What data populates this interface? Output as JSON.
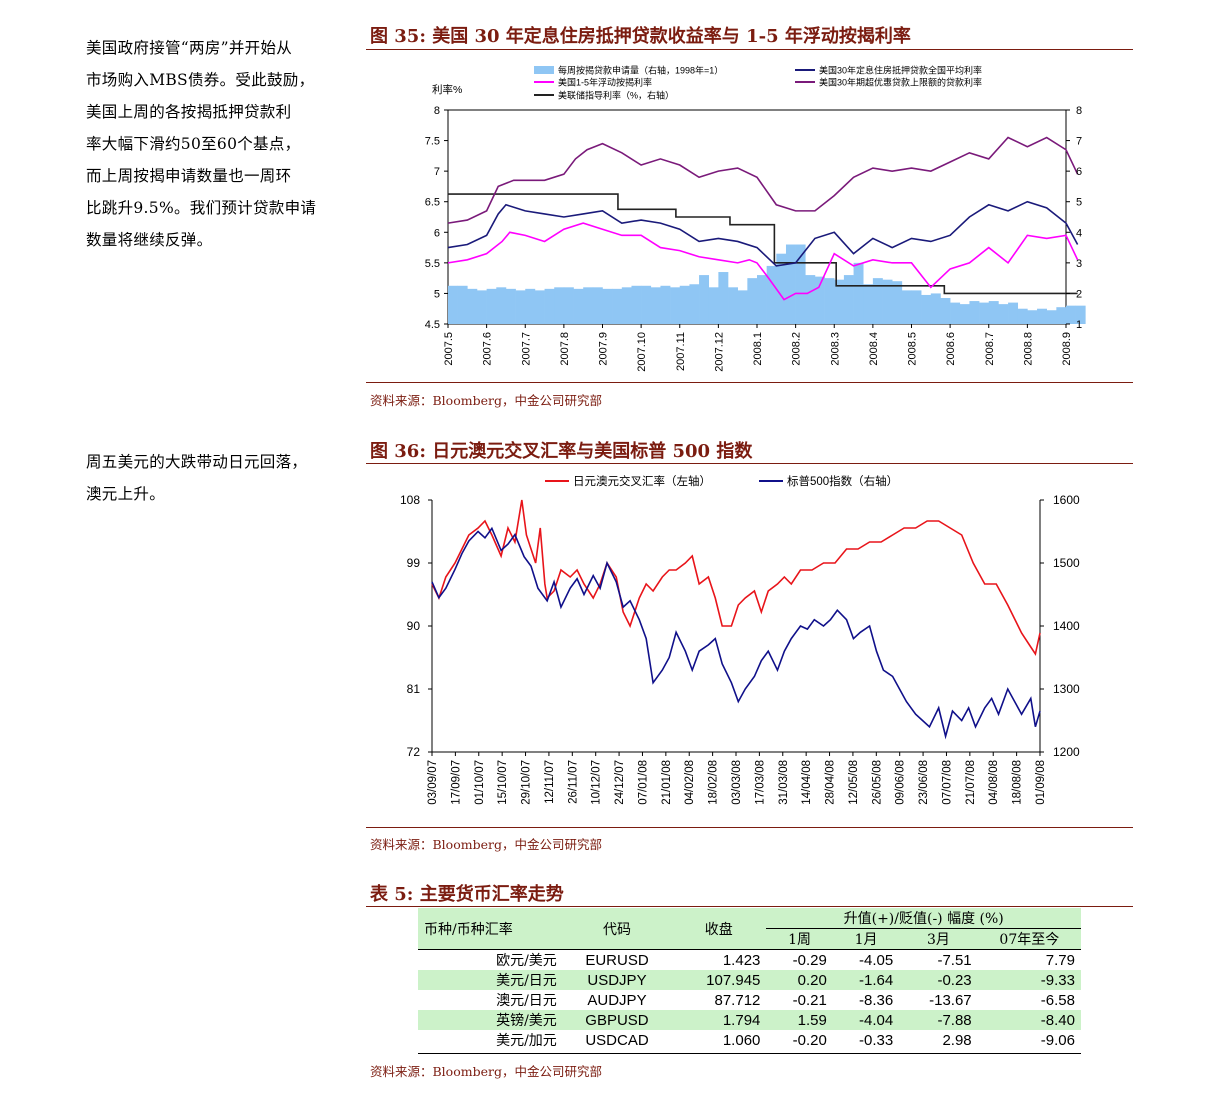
{
  "side1": [
    "美国政府接管“两房”并开始从",
    "市场购入MBS债券。受此鼓励，",
    "美国上周的各按揭抵押贷款利",
    "率大幅下滑约50至60个基点，",
    "而上周按揭申请数量也一周环",
    "比跳升9.5%。我们预计贷款申请",
    "数量将继续反弹。"
  ],
  "side2": [
    "周五美元的大跌带动日元回落，",
    "澳元上升。"
  ],
  "fig35": {
    "title": "图 35:  美国 30 年定息住房抵押贷款收益率与 1-5 年浮动按揭利率",
    "source": "资料来源：Bloomberg，中金公司研究部"
  },
  "fig36": {
    "title": "图 36:  日元澳元交叉汇率与美国标普 500 指数",
    "source": "资料来源：Bloomberg，中金公司研究部"
  },
  "table5": {
    "title": "表 5:  主要货币汇率走势",
    "h_pair": "币种/币种汇率",
    "h_code": "代码",
    "h_close": "收盘",
    "h_change": "升值(+)/贬值(-)       幅度 (%)",
    "h_1w": "1周",
    "h_1m": "1月",
    "h_3m": "3月",
    "h_ytd": "07年至今",
    "rows": [
      {
        "name": "欧元/美元",
        "code": "EURUSD",
        "close": "1.423",
        "w1": "-0.29",
        "m1": "-4.05",
        "m3": "-7.51",
        "ytd": "7.79"
      },
      {
        "name": "美元/日元",
        "code": "USDJPY",
        "close": "107.945",
        "w1": "0.20",
        "m1": "-1.64",
        "m3": "-0.23",
        "ytd": "-9.33"
      },
      {
        "name": "澳元/日元",
        "code": "AUDJPY",
        "close": "87.712",
        "w1": "-0.21",
        "m1": "-8.36",
        "m3": "-13.67",
        "ytd": "-6.58"
      },
      {
        "name": "英镑/美元",
        "code": "GBPUSD",
        "close": "1.794",
        "w1": "1.59",
        "m1": "-4.04",
        "m3": "-7.88",
        "ytd": "-8.40"
      },
      {
        "name": "美元/加元",
        "code": "USDCAD",
        "close": "1.060",
        "w1": "-0.20",
        "m1": "-0.33",
        "m3": "2.98",
        "ytd": "-9.06"
      }
    ],
    "source": "资料来源：Bloomberg，中金公司研究部"
  },
  "chart_data": [
    {
      "type": "line",
      "ylabel": "利率%",
      "x_labels": [
        "2007.5",
        "2007.6",
        "2007.7",
        "2007.8",
        "2007.9",
        "2007.10",
        "2007.11",
        "2007.12",
        "2008.1",
        "2008.2",
        "2008.3",
        "2008.4",
        "2008.5",
        "2008.6",
        "2008.7",
        "2008.8",
        "2008.9"
      ],
      "y_left": {
        "min": 4.5,
        "max": 8,
        "ticks": [
          "4.5",
          "5",
          "5.5",
          "6",
          "6.5",
          "7",
          "7.5",
          "8"
        ]
      },
      "y_right": {
        "min": 1,
        "max": 8,
        "ticks": [
          "1",
          "2",
          "3",
          "4",
          "5",
          "6",
          "7",
          "8"
        ]
      },
      "legend": [
        "每周按揭贷款申请量（右轴，1998年=1）",
        "美国1-5年浮动按揭利率",
        "美联储指导利率（%，右轴）",
        "美国30年定息住房抵押贷款全国平均利率",
        "美国30年期超优惠贷款上限额的贷款利率"
      ],
      "colors": {
        "apps": "#8fc6f4",
        "arm": "#ff00ff",
        "fed": "#222222",
        "fixed30": "#1a1a7a",
        "jumbo": "#7a1a7a"
      },
      "series": [
        {
          "name": "每周按揭贷款申请量（右轴，1998年=1）",
          "axis": "right",
          "kind": "bar",
          "x": [
            0,
            0.25,
            0.5,
            0.75,
            1,
            1.25,
            1.5,
            1.75,
            2,
            2.25,
            2.5,
            2.75,
            3,
            3.25,
            3.5,
            3.75,
            4,
            4.25,
            4.5,
            4.75,
            5,
            5.25,
            5.5,
            5.75,
            6,
            6.25,
            6.5,
            6.75,
            7,
            7.25,
            7.5,
            7.75,
            8,
            8.25,
            8.5,
            8.75,
            9,
            9.25,
            9.5,
            9.75,
            10,
            10.25,
            10.5,
            10.75,
            11,
            11.25,
            11.5,
            11.75,
            12,
            12.25,
            12.5,
            12.75,
            13,
            13.25,
            13.5,
            13.75,
            14,
            14.25,
            14.5,
            14.75,
            15,
            15.25,
            15.5,
            15.75,
            16,
            16.25
          ],
          "y": [
            2.25,
            2.25,
            2.15,
            2.1,
            2.15,
            2.2,
            2.15,
            2.1,
            2.15,
            2.1,
            2.15,
            2.2,
            2.2,
            2.15,
            2.2,
            2.2,
            2.15,
            2.15,
            2.2,
            2.25,
            2.25,
            2.2,
            2.25,
            2.2,
            2.25,
            2.3,
            2.6,
            2.2,
            2.7,
            2.2,
            2.1,
            2.5,
            2.6,
            2.9,
            3.3,
            3.6,
            3.6,
            2.6,
            2.55,
            2.5,
            2.45,
            2.6,
            3.0,
            2.3,
            2.5,
            2.45,
            2.4,
            2.1,
            2.1,
            1.95,
            2.0,
            1.85,
            1.7,
            1.65,
            1.75,
            1.7,
            1.75,
            1.65,
            1.7,
            1.5,
            1.45,
            1.5,
            1.45,
            1.55,
            1.6,
            1.6
          ]
        },
        {
          "name": "美联储指导利率（%，右轴）",
          "axis": "right",
          "kind": "step",
          "x": [
            0,
            3.05,
            4.4,
            5.9,
            7.3,
            8.45,
            8.45,
            9.78,
            10.05,
            12.85,
            16.3
          ],
          "y": [
            5.25,
            5.25,
            4.75,
            4.5,
            4.25,
            3.5,
            3.0,
            3.0,
            2.25,
            2.0,
            2.0
          ]
        },
        {
          "name": "美国30年期超优惠贷款上限额的贷款利率",
          "axis": "left",
          "x": [
            0,
            0.5,
            1,
            1.3,
            1.7,
            2,
            2.5,
            3,
            3.3,
            3.6,
            4,
            4.5,
            5,
            5.5,
            6,
            6.5,
            7,
            7.5,
            8,
            8.5,
            9,
            9.5,
            10,
            10.5,
            11,
            11.5,
            12,
            12.5,
            13,
            13.5,
            14,
            14.5,
            15,
            15.5,
            16,
            16.3
          ],
          "y": [
            6.15,
            6.2,
            6.35,
            6.75,
            6.85,
            6.85,
            6.85,
            6.95,
            7.2,
            7.35,
            7.45,
            7.3,
            7.1,
            7.2,
            7.1,
            6.9,
            7.0,
            7.05,
            6.9,
            6.45,
            6.35,
            6.35,
            6.6,
            6.9,
            7.05,
            7.0,
            7.05,
            7.0,
            7.15,
            7.3,
            7.2,
            7.55,
            7.4,
            7.55,
            7.35,
            6.95
          ]
        },
        {
          "name": "美国30年定息住房抵押贷款全国平均利率",
          "axis": "left",
          "x": [
            0,
            0.5,
            1,
            1.3,
            1.5,
            2,
            2.5,
            3,
            3.5,
            4,
            4.5,
            5,
            5.5,
            6,
            6.5,
            7,
            7.5,
            8,
            8.5,
            9,
            9.25,
            9.5,
            10,
            10.5,
            11,
            11.5,
            12,
            12.5,
            13,
            13.5,
            14,
            14.5,
            15,
            15.5,
            16,
            16.3
          ],
          "y": [
            5.75,
            5.8,
            5.95,
            6.3,
            6.45,
            6.35,
            6.3,
            6.25,
            6.3,
            6.35,
            6.15,
            6.2,
            6.15,
            6.05,
            5.85,
            5.9,
            5.85,
            5.75,
            5.45,
            5.5,
            5.7,
            5.9,
            6.0,
            5.65,
            5.9,
            5.75,
            5.9,
            5.85,
            5.95,
            6.25,
            6.45,
            6.35,
            6.5,
            6.4,
            6.15,
            5.8
          ]
        },
        {
          "name": "美国1-5年浮动按揭利率",
          "axis": "left",
          "x": [
            0,
            0.5,
            1,
            1.4,
            1.6,
            2,
            2.5,
            3,
            3.5,
            4,
            4.5,
            5,
            5.5,
            6,
            6.5,
            7,
            7.5,
            7.8,
            8,
            8.3,
            8.7,
            9,
            9.3,
            9.6,
            10,
            10.5,
            11,
            11.5,
            12,
            12.5,
            13,
            13.5,
            14,
            14.5,
            15,
            15.5,
            16,
            16.3
          ],
          "y": [
            5.5,
            5.55,
            5.65,
            5.85,
            6.0,
            5.95,
            5.85,
            6.05,
            6.15,
            6.05,
            5.95,
            5.95,
            5.75,
            5.7,
            5.6,
            5.55,
            5.5,
            5.55,
            5.5,
            5.25,
            4.9,
            5.0,
            5.0,
            5.1,
            5.65,
            5.45,
            5.55,
            5.5,
            5.5,
            5.1,
            5.4,
            5.5,
            5.75,
            5.5,
            5.95,
            5.9,
            5.95,
            5.55
          ]
        }
      ]
    },
    {
      "type": "line",
      "legend": [
        "日元澳元交叉汇率（左轴）",
        "标普500指数（右轴）"
      ],
      "x_labels": [
        "03/09/07",
        "17/09/07",
        "01/10/07",
        "15/10/07",
        "29/10/07",
        "12/11/07",
        "26/11/07",
        "10/12/07",
        "24/12/07",
        "07/01/08",
        "21/01/08",
        "04/02/08",
        "18/02/08",
        "03/03/08",
        "17/03/08",
        "31/03/08",
        "14/04/08",
        "28/04/08",
        "12/05/08",
        "26/05/08",
        "09/06/08",
        "23/06/08",
        "07/07/08",
        "21/07/08",
        "04/08/08",
        "18/08/08",
        "01/09/08"
      ],
      "y_left": {
        "min": 72,
        "max": 108,
        "ticks": [
          "72",
          "81",
          "90",
          "99",
          "108"
        ]
      },
      "y_right": {
        "min": 1200,
        "max": 1600,
        "ticks": [
          "1200",
          "1300",
          "1400",
          "1500",
          "1600"
        ]
      },
      "colors": {
        "audjpy": "#e8141a",
        "spx": "#10108a"
      },
      "series": [
        {
          "name": "日元澳元交叉汇率（左轴）",
          "axis": "left",
          "x": [
            0,
            0.3,
            0.6,
            1,
            1.3,
            1.6,
            2,
            2.3,
            2.6,
            3,
            3.3,
            3.6,
            3.9,
            4.1,
            4.3,
            4.5,
            4.7,
            4.9,
            5,
            5.3,
            5.6,
            6,
            6.3,
            6.6,
            7,
            7.3,
            7.6,
            8,
            8.3,
            8.6,
            9,
            9.3,
            9.6,
            10,
            10.3,
            10.6,
            11,
            11.3,
            11.6,
            12,
            12.3,
            12.6,
            13,
            13.3,
            13.6,
            14,
            14.3,
            14.6,
            15,
            15.3,
            15.6,
            16,
            16.5,
            17,
            17.5,
            18,
            18.5,
            19,
            19.5,
            20,
            20.5,
            21,
            21.5,
            22,
            22.5,
            23,
            23.5,
            24,
            24.5,
            25,
            25.3,
            25.6,
            26,
            26.2,
            26.4
          ],
          "y": [
            96,
            94,
            97,
            99,
            101,
            103,
            104,
            105,
            103,
            100,
            104,
            102,
            108,
            103,
            101,
            99,
            104,
            96,
            94,
            95,
            98,
            97,
            98,
            96,
            94,
            96,
            99,
            97,
            92,
            90,
            94,
            96,
            95,
            97,
            98,
            98,
            99,
            100,
            96,
            97,
            94,
            90,
            90,
            93,
            94,
            95,
            92,
            95,
            96,
            97,
            96,
            98,
            98,
            99,
            99,
            101,
            101,
            102,
            102,
            103,
            104,
            104,
            105,
            105,
            104,
            103,
            99,
            96,
            96,
            93,
            91,
            89,
            87,
            86,
            89
          ]
        },
        {
          "name": "标普500指数（右轴）",
          "axis": "right",
          "x": [
            0,
            0.3,
            0.6,
            1,
            1.3,
            1.6,
            2,
            2.3,
            2.6,
            3,
            3.3,
            3.6,
            4,
            4.3,
            4.6,
            5,
            5.3,
            5.6,
            6,
            6.3,
            6.6,
            7,
            7.3,
            7.6,
            8,
            8.3,
            8.6,
            9,
            9.3,
            9.6,
            10,
            10.3,
            10.6,
            11,
            11.3,
            11.6,
            12,
            12.3,
            12.6,
            13,
            13.3,
            13.6,
            14,
            14.3,
            14.6,
            15,
            15.3,
            15.6,
            16,
            16.3,
            16.6,
            17,
            17.3,
            17.6,
            18,
            18.3,
            18.6,
            19,
            19.3,
            19.6,
            20,
            20.3,
            20.6,
            21,
            21.3,
            21.6,
            22,
            22.3,
            22.6,
            23,
            23.3,
            23.6,
            24,
            24.3,
            24.6,
            25,
            25.3,
            25.6,
            26,
            26.2,
            26.4
          ],
          "y": [
            1470,
            1445,
            1460,
            1490,
            1515,
            1535,
            1550,
            1540,
            1555,
            1520,
            1530,
            1545,
            1510,
            1495,
            1460,
            1440,
            1470,
            1430,
            1460,
            1475,
            1450,
            1480,
            1460,
            1500,
            1470,
            1430,
            1440,
            1410,
            1380,
            1310,
            1330,
            1350,
            1390,
            1360,
            1330,
            1360,
            1370,
            1380,
            1340,
            1310,
            1280,
            1300,
            1320,
            1345,
            1360,
            1330,
            1360,
            1380,
            1400,
            1395,
            1410,
            1400,
            1410,
            1425,
            1410,
            1380,
            1390,
            1400,
            1360,
            1330,
            1320,
            1300,
            1280,
            1260,
            1250,
            1240,
            1270,
            1225,
            1265,
            1250,
            1270,
            1240,
            1270,
            1285,
            1260,
            1300,
            1280,
            1260,
            1285,
            1240,
            1265
          ]
        }
      ]
    }
  ]
}
